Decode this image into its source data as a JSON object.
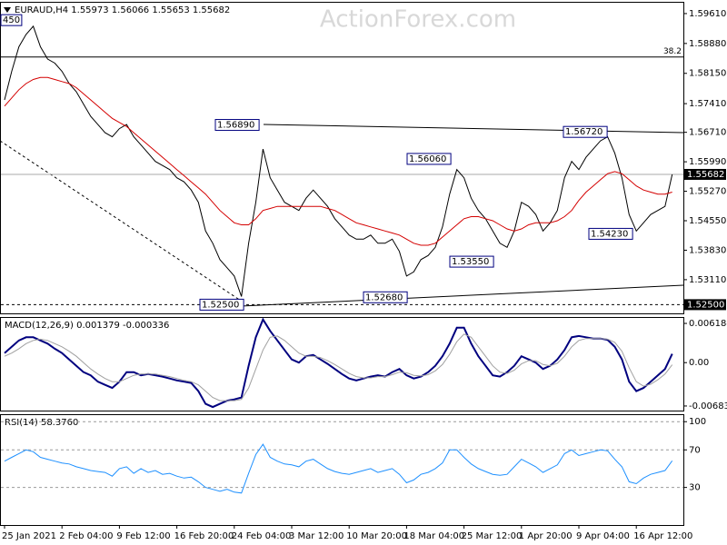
{
  "chart_data": [
    {
      "type": "line",
      "title": "EURAUD,H4 1.55973 1.56066 1.55653 1.55682",
      "watermark": "ActionForex.com",
      "categories": [
        "25 Jan 2021",
        null,
        null,
        null,
        null,
        null,
        null,
        null,
        "2 Feb 04:00",
        null,
        null,
        null,
        null,
        null,
        null,
        null,
        "9 Feb 12:00",
        null,
        null,
        null,
        null,
        null,
        null,
        null,
        "16 Feb 20:00",
        null,
        null,
        null,
        null,
        null,
        null,
        null,
        "24 Feb 04:00",
        null,
        null,
        null,
        null,
        null,
        null,
        null,
        "3 Mar 12:00",
        null,
        null,
        null,
        null,
        null,
        null,
        null,
        "10 Mar 20:00",
        null,
        null,
        null,
        null,
        null,
        null,
        null,
        "18 Mar 04:00",
        null,
        null,
        null,
        null,
        null,
        null,
        null,
        "25 Mar 12:00",
        null,
        null,
        null,
        null,
        null,
        null,
        null,
        "1 Apr 20:00",
        null,
        null,
        null,
        null,
        null,
        null,
        null,
        "9 Apr 04:00",
        null,
        null,
        null,
        null,
        null,
        null,
        null,
        "16 Apr 12:00",
        null,
        null,
        null,
        null,
        null
      ],
      "series": [
        {
          "color": "#000000",
          "values": [
            1.575,
            1.582,
            1.588,
            1.591,
            1.593,
            1.588,
            1.585,
            1.584,
            1.582,
            1.579,
            1.577,
            1.574,
            1.571,
            1.569,
            1.567,
            1.566,
            1.568,
            1.569,
            1.566,
            1.564,
            1.562,
            1.56,
            1.559,
            1.558,
            1.556,
            1.555,
            1.553,
            1.55,
            1.543,
            1.54,
            1.536,
            1.534,
            1.532,
            1.527,
            1.54,
            1.55,
            1.563,
            1.556,
            1.553,
            1.55,
            1.549,
            1.548,
            1.551,
            1.553,
            1.551,
            1.549,
            1.546,
            1.544,
            1.542,
            1.541,
            1.541,
            1.542,
            1.54,
            1.54,
            1.541,
            1.538,
            1.532,
            1.533,
            1.536,
            1.537,
            1.539,
            1.544,
            1.552,
            1.558,
            1.556,
            1.551,
            1.548,
            1.546,
            1.543,
            1.54,
            1.539,
            1.543,
            1.55,
            1.549,
            1.547,
            1.543,
            1.545,
            1.548,
            1.556,
            1.56,
            1.558,
            1.561,
            1.563,
            1.565,
            1.566,
            1.562,
            1.556,
            1.547,
            1.543,
            1.545,
            1.547,
            1.548,
            1.549,
            1.55682
          ]
        },
        {
          "color": "#d40000",
          "values": [
            1.5735,
            1.5755,
            1.5775,
            1.579,
            1.58,
            1.5805,
            1.5805,
            1.58,
            1.5795,
            1.579,
            1.578,
            1.5765,
            1.575,
            1.5735,
            1.572,
            1.5705,
            1.5695,
            1.5685,
            1.567,
            1.5655,
            1.564,
            1.5625,
            1.561,
            1.5595,
            1.558,
            1.5565,
            1.555,
            1.5535,
            1.552,
            1.55,
            1.548,
            1.5465,
            1.545,
            1.5445,
            1.5445,
            1.546,
            1.548,
            1.5485,
            1.549,
            1.549,
            1.549,
            1.549,
            1.549,
            1.549,
            1.549,
            1.5485,
            1.548,
            1.547,
            1.546,
            1.545,
            1.5445,
            1.544,
            1.5435,
            1.543,
            1.5425,
            1.542,
            1.541,
            1.54,
            1.5395,
            1.5395,
            1.54,
            1.5415,
            1.543,
            1.5445,
            1.546,
            1.5465,
            1.5465,
            1.546,
            1.5455,
            1.5445,
            1.5435,
            1.543,
            1.5435,
            1.5445,
            1.545,
            1.545,
            1.545,
            1.5455,
            1.5465,
            1.548,
            1.5505,
            1.5525,
            1.554,
            1.5555,
            1.557,
            1.5575,
            1.557,
            1.5555,
            1.554,
            1.553,
            1.5525,
            1.552,
            1.552,
            1.5525
          ]
        }
      ],
      "ylim": [
        1.52287,
        1.59875
      ],
      "yticks": [
        {
          "value": 1.5961,
          "label": "1.59610"
        },
        {
          "value": 1.5888,
          "label": "1.58880"
        },
        {
          "value": 1.5815,
          "label": "1.58150"
        },
        {
          "value": 1.5741,
          "label": "1.57410"
        },
        {
          "value": 1.5671,
          "label": "1.56710"
        },
        {
          "value": 1.5599,
          "label": "1.55990"
        },
        {
          "value": 1.5527,
          "label": "1.55270"
        },
        {
          "value": 1.5455,
          "label": "1.54550"
        },
        {
          "value": 1.5383,
          "label": "1.53830"
        },
        {
          "value": 1.5311,
          "label": "1.53110"
        }
      ],
      "annotations": [
        {
          "value": 1.5689,
          "label": "1.56890"
        },
        {
          "value": 1.5606,
          "label": "1.56060"
        },
        {
          "value": 1.5672,
          "label": "1.56720"
        },
        {
          "value": 1.5423,
          "label": "1.54230"
        },
        {
          "value": 1.5355,
          "label": "1.53550"
        },
        {
          "value": 1.5268,
          "label": "1.52680"
        },
        {
          "value": 1.525,
          "label": "1.52500"
        },
        {
          "value": 1.5945,
          "label": "450"
        }
      ],
      "fib_level": {
        "value": 1.5855,
        "label": "38.2"
      },
      "price_labels": [
        {
          "value": 1.55682,
          "label": "1.55682"
        },
        {
          "value": 1.525,
          "label": "1.52500"
        }
      ]
    },
    {
      "type": "line",
      "title": "MACD(12,26,9) 0.001379 -0.000336",
      "series": [
        {
          "color": "#00007f",
          "values": [
            0.0015,
            0.0025,
            0.0035,
            0.004,
            0.004,
            0.0035,
            0.003,
            0.0022,
            0.0015,
            0.0005,
            -0.0005,
            -0.0015,
            -0.002,
            -0.003,
            -0.0035,
            -0.004,
            -0.003,
            -0.0015,
            -0.0015,
            -0.002,
            -0.0018,
            -0.002,
            -0.0022,
            -0.0025,
            -0.0028,
            -0.003,
            -0.0032,
            -0.0045,
            -0.0065,
            -0.007,
            -0.0065,
            -0.006,
            -0.0058,
            -0.0055,
            -0.0005,
            0.004,
            0.0068,
            0.005,
            0.0035,
            0.002,
            0.0005,
            0,
            0.001,
            0.0012,
            0.0005,
            -0.0002,
            -0.001,
            -0.0018,
            -0.0025,
            -0.0028,
            -0.0025,
            -0.0022,
            -0.002,
            -0.0022,
            -0.0015,
            -0.001,
            -0.002,
            -0.0025,
            -0.0022,
            -0.0015,
            -0.0005,
            0.001,
            0.003,
            0.0055,
            0.0055,
            0.003,
            0.001,
            -0.0005,
            -0.002,
            -0.0022,
            -0.0015,
            -0.0005,
            0.001,
            0.0005,
            0,
            -0.001,
            -0.0005,
            0.0005,
            0.002,
            0.004,
            0.0042,
            0.004,
            0.0038,
            0.0038,
            0.0036,
            0.0025,
            0.0005,
            -0.003,
            -0.0045,
            -0.004,
            -0.003,
            -0.002,
            -0.001,
            0.001379
          ]
        },
        {
          "color": "#a0a0a0",
          "values": [
            0.001,
            0.0015,
            0.0022,
            0.003,
            0.0035,
            0.0037,
            0.0035,
            0.003,
            0.0025,
            0.0018,
            0.001,
            0,
            -0.001,
            -0.0018,
            -0.0025,
            -0.003,
            -0.003,
            -0.0025,
            -0.002,
            -0.0018,
            -0.0018,
            -0.0018,
            -0.002,
            -0.0022,
            -0.0025,
            -0.0028,
            -0.003,
            -0.0035,
            -0.0045,
            -0.0055,
            -0.006,
            -0.006,
            -0.006,
            -0.0058,
            -0.004,
            -0.001,
            0.002,
            0.004,
            0.0042,
            0.0035,
            0.0025,
            0.0015,
            0.001,
            0.001,
            0.0008,
            0.0003,
            -0.0003,
            -0.001,
            -0.0017,
            -0.0022,
            -0.0024,
            -0.0024,
            -0.0022,
            -0.0022,
            -0.0019,
            -0.0015,
            -0.0016,
            -0.002,
            -0.0021,
            -0.0019,
            -0.0013,
            -0.0003,
            0.0013,
            0.0033,
            0.0045,
            0.004,
            0.0025,
            0.001,
            -0.0005,
            -0.0015,
            -0.0017,
            -0.0012,
            -0.0002,
            0.0003,
            0.0003,
            -0.0003,
            -0.0005,
            -0.0001,
            0.001,
            0.0025,
            0.0035,
            0.0038,
            0.0038,
            0.0038,
            0.0037,
            0.0032,
            0.0018,
            -0.0008,
            -0.003,
            -0.0037,
            -0.0034,
            -0.0027,
            -0.0018,
            -0.000336
          ]
        }
      ],
      "ylim": [
        -0.00756,
        0.00705
      ],
      "yticks": [
        0.006184,
        {
          "value": 0,
          "label": "0.00"
        },
        -0.006837
      ]
    },
    {
      "type": "line",
      "title": "RSI(14) 58.3760",
      "series": [
        {
          "color": "#1e90ff",
          "values": [
            58,
            62,
            66,
            70,
            68,
            62,
            60,
            58,
            56,
            55,
            52,
            50,
            48,
            47,
            46,
            42,
            50,
            52,
            45,
            50,
            46,
            48,
            44,
            45,
            42,
            40,
            41,
            36,
            30,
            28,
            26,
            28,
            25,
            24,
            45,
            65,
            76,
            62,
            58,
            55,
            54,
            52,
            58,
            60,
            55,
            50,
            47,
            45,
            44,
            46,
            48,
            50,
            46,
            48,
            50,
            44,
            35,
            38,
            44,
            46,
            50,
            56,
            70,
            70,
            62,
            55,
            50,
            47,
            44,
            43,
            44,
            52,
            60,
            56,
            52,
            46,
            50,
            54,
            66,
            70,
            64,
            66,
            68,
            70,
            69,
            60,
            52,
            36,
            34,
            40,
            44,
            46,
            48,
            58.376
          ]
        }
      ],
      "ylim": [
        -10,
        107
      ],
      "yticks": [
        100,
        70,
        30
      ],
      "grid": true
    }
  ]
}
